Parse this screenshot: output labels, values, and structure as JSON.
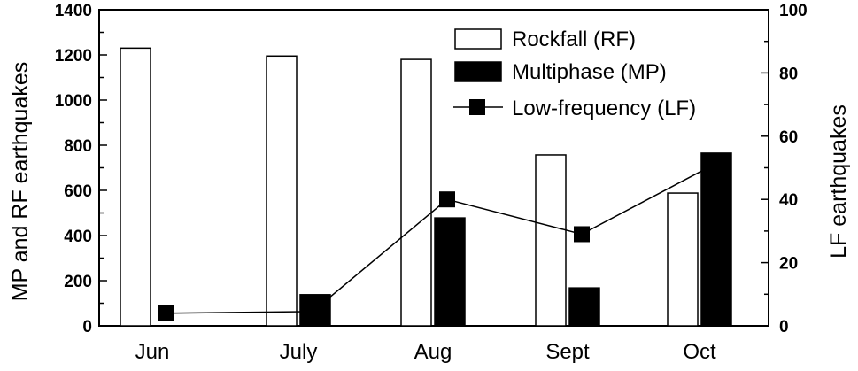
{
  "chart_data": {
    "type": "bar",
    "categories": [
      "Jun",
      "July",
      "Aug",
      "Sept",
      "Oct"
    ],
    "series": [
      {
        "name": "Rockfall (RF)",
        "kind": "bar",
        "axis": "left",
        "fill": "#ffffff",
        "stroke": "#000000",
        "values": [
          1230,
          1195,
          1180,
          757,
          588
        ]
      },
      {
        "name": "Multiphase (MP)",
        "kind": "bar",
        "axis": "left",
        "fill": "#000000",
        "stroke": "#000000",
        "values": [
          0,
          138,
          478,
          168,
          765
        ]
      },
      {
        "name": "Low-frequency (LF)",
        "kind": "line",
        "marker": "square",
        "axis": "right",
        "color": "#000000",
        "values": [
          4,
          4.5,
          40,
          29,
          51
        ]
      }
    ],
    "ylabel": "MP and RF earthquakes",
    "y2label": "LF earthquakes",
    "xlabel": "",
    "ylim": [
      0,
      1400
    ],
    "y2lim": [
      0,
      100
    ],
    "yticks": [
      "0",
      "200",
      "400",
      "600",
      "800",
      "1000",
      "1200",
      "1400"
    ],
    "y2ticks": [
      "0",
      "20",
      "40",
      "60",
      "80",
      "100"
    ],
    "grid": false,
    "legend_position": "top-right"
  }
}
